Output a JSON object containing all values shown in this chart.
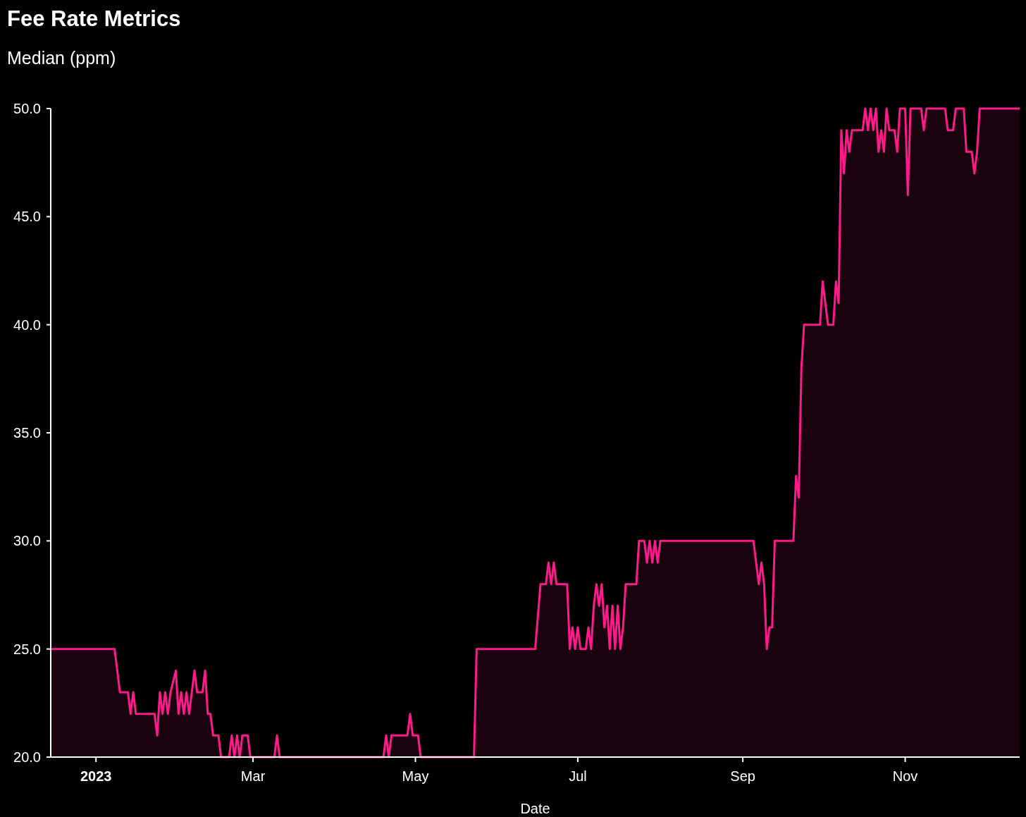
{
  "chart_data": {
    "type": "area",
    "title": "Fee Rate Metrics",
    "subtitle": "Median (ppm)",
    "xlabel": "Date",
    "x": [
      "2022-12-15",
      "2023-01-08",
      "2023-01-09",
      "2023-01-10",
      "2023-01-13",
      "2023-01-14",
      "2023-01-15",
      "2023-01-16",
      "2023-01-23",
      "2023-01-24",
      "2023-01-25",
      "2023-01-26",
      "2023-01-27",
      "2023-01-28",
      "2023-01-29",
      "2023-01-31",
      "2023-02-01",
      "2023-02-02",
      "2023-02-03",
      "2023-02-04",
      "2023-02-05",
      "2023-02-07",
      "2023-02-08",
      "2023-02-10",
      "2023-02-11",
      "2023-02-12",
      "2023-02-13",
      "2023-02-14",
      "2023-02-16",
      "2023-02-17",
      "2023-02-20",
      "2023-02-21",
      "2023-02-22",
      "2023-02-23",
      "2023-02-24",
      "2023-02-25",
      "2023-02-27",
      "2023-02-28",
      "2023-03-09",
      "2023-03-10",
      "2023-03-11",
      "2023-04-19",
      "2023-04-20",
      "2023-04-21",
      "2023-04-22",
      "2023-04-28",
      "2023-04-29",
      "2023-04-30",
      "2023-05-02",
      "2023-05-03",
      "2023-05-23",
      "2023-05-24",
      "2023-06-15",
      "2023-06-17",
      "2023-06-19",
      "2023-06-20",
      "2023-06-21",
      "2023-06-22",
      "2023-06-23",
      "2023-06-27",
      "2023-06-28",
      "2023-06-29",
      "2023-06-30",
      "2023-07-01",
      "2023-07-02",
      "2023-07-04",
      "2023-07-05",
      "2023-07-06",
      "2023-07-07",
      "2023-07-08",
      "2023-07-09",
      "2023-07-10",
      "2023-07-11",
      "2023-07-12",
      "2023-07-13",
      "2023-07-14",
      "2023-07-15",
      "2023-07-16",
      "2023-07-17",
      "2023-07-18",
      "2023-07-19",
      "2023-07-23",
      "2023-07-24",
      "2023-07-26",
      "2023-07-27",
      "2023-07-28",
      "2023-07-29",
      "2023-07-30",
      "2023-07-31",
      "2023-08-01",
      "2023-09-05",
      "2023-09-06",
      "2023-09-07",
      "2023-09-08",
      "2023-09-09",
      "2023-09-10",
      "2023-09-11",
      "2023-09-12",
      "2023-09-13",
      "2023-09-20",
      "2023-09-21",
      "2023-09-22",
      "2023-09-23",
      "2023-09-24",
      "2023-09-30",
      "2023-10-01",
      "2023-10-02",
      "2023-10-03",
      "2023-10-05",
      "2023-10-06",
      "2023-10-07",
      "2023-10-08",
      "2023-10-09",
      "2023-10-10",
      "2023-10-11",
      "2023-10-12",
      "2023-10-16",
      "2023-10-17",
      "2023-10-18",
      "2023-10-19",
      "2023-10-20",
      "2023-10-21",
      "2023-10-22",
      "2023-10-23",
      "2023-10-24",
      "2023-10-25",
      "2023-10-26",
      "2023-10-28",
      "2023-10-29",
      "2023-10-30",
      "2023-11-01",
      "2023-11-02",
      "2023-11-03",
      "2023-11-07",
      "2023-11-08",
      "2023-11-09",
      "2023-11-16",
      "2023-11-17",
      "2023-11-19",
      "2023-11-20",
      "2023-11-23",
      "2023-11-24",
      "2023-11-26",
      "2023-11-27",
      "2023-11-28",
      "2023-11-29",
      "2023-12-14"
    ],
    "series": [
      {
        "color": "#ff1a8c",
        "values": [
          25,
          25,
          24,
          23,
          23,
          22,
          23,
          22,
          22,
          21,
          23,
          22,
          23,
          22,
          23,
          24,
          22,
          23,
          22,
          23,
          22,
          24,
          23,
          23,
          24,
          22,
          22,
          21,
          21,
          20,
          20,
          21,
          20,
          21,
          20,
          21,
          21,
          20,
          20,
          21,
          20,
          20,
          21,
          20,
          21,
          21,
          22,
          21,
          21,
          20,
          20,
          25,
          25,
          28,
          28,
          29,
          28,
          29,
          28,
          28,
          25,
          26,
          25,
          26,
          25,
          25,
          26,
          25,
          27,
          28,
          27,
          28,
          26,
          27,
          25,
          27,
          25,
          27,
          25,
          26,
          28,
          28,
          30,
          30,
          29,
          30,
          29,
          30,
          29,
          30,
          30,
          29,
          28,
          29,
          28,
          25,
          26,
          26,
          30,
          30,
          33,
          32,
          38,
          40,
          40,
          42,
          41,
          40,
          40,
          42,
          41,
          49,
          47,
          49,
          48,
          49,
          49,
          50,
          49,
          50,
          49,
          50,
          48,
          49,
          48,
          50,
          49,
          49,
          48,
          50,
          50,
          46,
          50,
          50,
          49,
          50,
          50,
          49,
          49,
          50,
          50,
          48,
          48,
          47,
          48,
          50,
          50
        ]
      }
    ],
    "xlim": [
      "2022-12-15",
      "2023-12-14"
    ],
    "xticks": [
      {
        "value": "2023-01-01",
        "label": "2023"
      },
      {
        "value": "2023-03-01",
        "label": "Mar"
      },
      {
        "value": "2023-05-01",
        "label": "May"
      },
      {
        "value": "2023-07-01",
        "label": "Jul"
      },
      {
        "value": "2023-09-01",
        "label": "Sep"
      },
      {
        "value": "2023-11-01",
        "label": "Nov"
      }
    ],
    "ylim": [
      20,
      50
    ],
    "yticks": [
      {
        "value": 20,
        "label": "20.0"
      },
      {
        "value": 25,
        "label": "25.0"
      },
      {
        "value": 30,
        "label": "30.0"
      },
      {
        "value": 35,
        "label": "35.0"
      },
      {
        "value": 40,
        "label": "40.0"
      },
      {
        "value": 45,
        "label": "45.0"
      },
      {
        "value": 50,
        "label": "50.0"
      }
    ],
    "grid": false
  }
}
